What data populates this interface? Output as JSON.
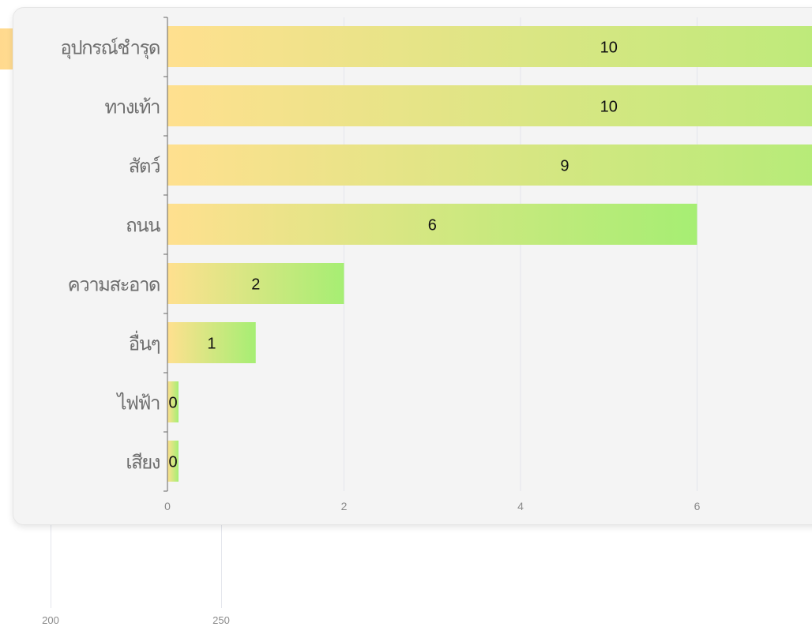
{
  "chart_data": [
    {
      "type": "bar",
      "orientation": "horizontal",
      "categories": [
        "อุปกรณ์ชำรุด",
        "ทางเท้า",
        "สัตว์",
        "ถนน",
        "ความสะอาด",
        "อื่นๆ",
        "ไฟฟ้า",
        "เสียง"
      ],
      "values": [
        10,
        10,
        9,
        6,
        2,
        1,
        0,
        0
      ],
      "data_labels": [
        "10",
        "10",
        "9",
        "6",
        "2",
        "1",
        "0",
        "0"
      ],
      "x_ticks": [
        "0",
        "2",
        "4",
        "6"
      ],
      "xlim": [
        0,
        10
      ],
      "grid": true,
      "legend": "none",
      "title": "",
      "xlabel": "",
      "ylabel": "",
      "colors": {
        "bar_start": "#ffe08f",
        "bar_end": "#a6ee73"
      }
    },
    {
      "type": "bar",
      "orientation": "horizontal",
      "note_visibility": "partially hidden behind the front panel",
      "x_ticks": [
        "200",
        "250"
      ],
      "colors": {
        "bar": "#ffdc92"
      }
    }
  ]
}
